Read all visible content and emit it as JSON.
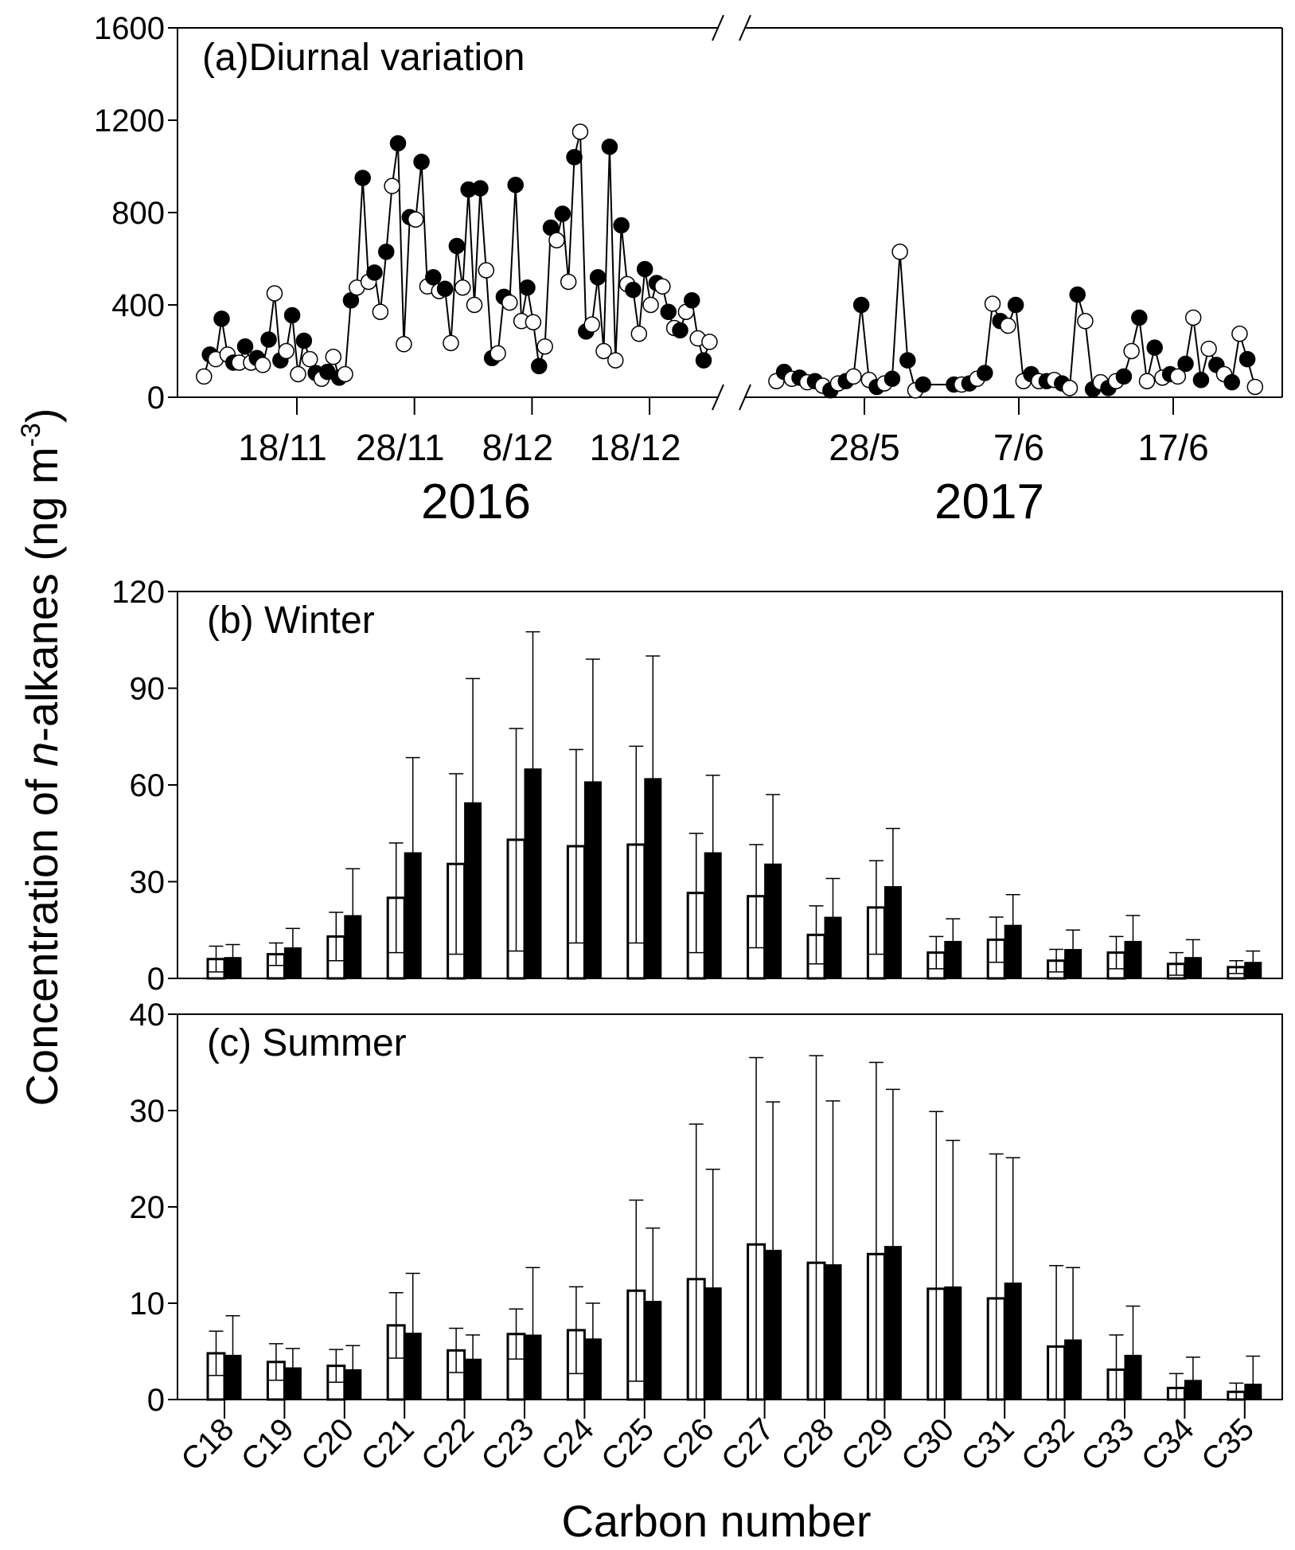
{
  "y_axis_label": {
    "pre": "Concentration of ",
    "italic": "n",
    "mid": "-alkanes (ng m",
    "sup": "-3",
    "post": ")"
  },
  "x_axis_label": "Carbon number",
  "chart_data": [
    {
      "type": "line",
      "title": "(a)Diurnal variation",
      "ylim": [
        0,
        1600
      ],
      "yticks": [
        0,
        400,
        800,
        1200,
        1600
      ],
      "marker_pattern": [
        "open",
        "filled"
      ],
      "segments": [
        {
          "year": "2016",
          "start_day": 10.1,
          "step_days": 0.5,
          "xticks": [
            {
              "day": 18,
              "label": "18/11"
            },
            {
              "day": 28,
              "label": "28/11"
            },
            {
              "day": 38,
              "label": "8/12"
            },
            {
              "day": 48,
              "label": "18/12"
            }
          ],
          "values": [
            90,
            185,
            165,
            340,
            185,
            150,
            150,
            220,
            150,
            170,
            140,
            250,
            450,
            160,
            200,
            355,
            100,
            245,
            165,
            105,
            80,
            110,
            175,
            85,
            100,
            420,
            475,
            950,
            500,
            540,
            370,
            630,
            915,
            1100,
            230,
            780,
            770,
            1020,
            480,
            520,
            460,
            470,
            235,
            655,
            475,
            900,
            400,
            905,
            550,
            170,
            190,
            435,
            410,
            920,
            330,
            475,
            325,
            135,
            220,
            735,
            680,
            795,
            500,
            1040,
            1150,
            285,
            315,
            520,
            200,
            1085,
            160,
            745,
            490,
            465,
            275,
            555,
            400,
            495,
            480,
            370,
            300,
            290,
            370,
            420,
            255,
            160,
            240
          ]
        },
        {
          "year": "2017",
          "start_day": 22.3,
          "step_days": 0.5,
          "xticks": [
            {
              "day": 28,
              "label": "28/5"
            },
            {
              "day": 38,
              "label": "7/6"
            },
            {
              "day": 48,
              "label": "17/6"
            }
          ],
          "values": [
            70,
            110,
            80,
            85,
            65,
            70,
            50,
            30,
            60,
            70,
            90,
            400,
            75,
            45,
            60,
            80,
            630,
            160,
            30,
            55,
            null,
            null,
            null,
            55,
            55,
            60,
            80,
            105,
            405,
            330,
            310,
            400,
            70,
            100,
            70,
            70,
            75,
            60,
            40,
            445,
            330,
            35,
            65,
            40,
            70,
            90,
            200,
            345,
            70,
            215,
            85,
            100,
            90,
            145,
            345,
            75,
            210,
            140,
            100,
            65,
            275,
            165,
            45
          ]
        }
      ]
    },
    {
      "type": "bar",
      "title": "(b) Winter",
      "ylim": [
        0,
        120
      ],
      "yticks": [
        0,
        30,
        60,
        90,
        120
      ],
      "categories": [
        "C18",
        "C19",
        "C20",
        "C21",
        "C22",
        "C23",
        "C24",
        "C25",
        "C26",
        "C27",
        "C28",
        "C29",
        "C30",
        "C31",
        "C32",
        "C33",
        "C34",
        "C35"
      ],
      "series": [
        {
          "style": "open",
          "values": [
            6,
            7.5,
            13,
            25,
            35.5,
            43,
            41,
            41.5,
            26.5,
            25.5,
            13.5,
            22,
            8,
            12,
            5.5,
            8,
            4.5,
            3.5
          ],
          "upper": [
            10,
            11,
            20.5,
            42,
            63.5,
            77.5,
            71,
            72,
            45,
            41.5,
            22.5,
            36.5,
            13,
            19,
            9,
            13,
            8,
            5.5
          ]
        },
        {
          "style": "filled",
          "values": [
            6.5,
            9.5,
            19.5,
            39,
            54.5,
            65,
            61,
            62,
            39,
            35.5,
            19,
            28.5,
            11.5,
            16.5,
            9,
            11.5,
            6.5,
            5
          ],
          "upper": [
            10.5,
            15.5,
            34,
            68.5,
            93,
            107.5,
            99,
            100,
            63,
            57,
            31,
            46.5,
            18.5,
            26,
            15,
            19.5,
            12,
            8.5
          ]
        }
      ]
    },
    {
      "type": "bar",
      "title": "(c) Summer",
      "ylim": [
        0,
        40
      ],
      "yticks": [
        0,
        10,
        20,
        30,
        40
      ],
      "categories": [
        "C18",
        "C19",
        "C20",
        "C21",
        "C22",
        "C23",
        "C24",
        "C25",
        "C26",
        "C27",
        "C28",
        "C29",
        "C30",
        "C31",
        "C32",
        "C33",
        "C34",
        "C35"
      ],
      "series": [
        {
          "style": "open",
          "values": [
            4.8,
            3.9,
            3.5,
            7.7,
            5.1,
            6.8,
            7.2,
            11.3,
            12.5,
            16.1,
            14.2,
            15.1,
            11.5,
            10.5,
            5.5,
            3.1,
            1.2,
            0.8
          ],
          "upper": [
            7.1,
            5.8,
            5.2,
            11.1,
            7.4,
            9.4,
            11.7,
            20.7,
            28.6,
            35.5,
            35.7,
            35.0,
            29.9,
            25.5,
            13.9,
            6.7,
            2.7,
            1.7
          ]
        },
        {
          "style": "filled",
          "values": [
            4.6,
            3.3,
            3.1,
            6.9,
            4.2,
            6.7,
            6.3,
            10.2,
            11.6,
            15.5,
            14.0,
            15.9,
            11.7,
            12.1,
            6.2,
            4.6,
            2.0,
            1.6
          ],
          "upper": [
            8.7,
            5.3,
            5.6,
            13.1,
            6.7,
            13.7,
            10.0,
            17.8,
            23.9,
            30.9,
            31.0,
            32.2,
            26.9,
            25.1,
            13.7,
            9.7,
            4.4,
            4.5
          ]
        }
      ]
    }
  ]
}
